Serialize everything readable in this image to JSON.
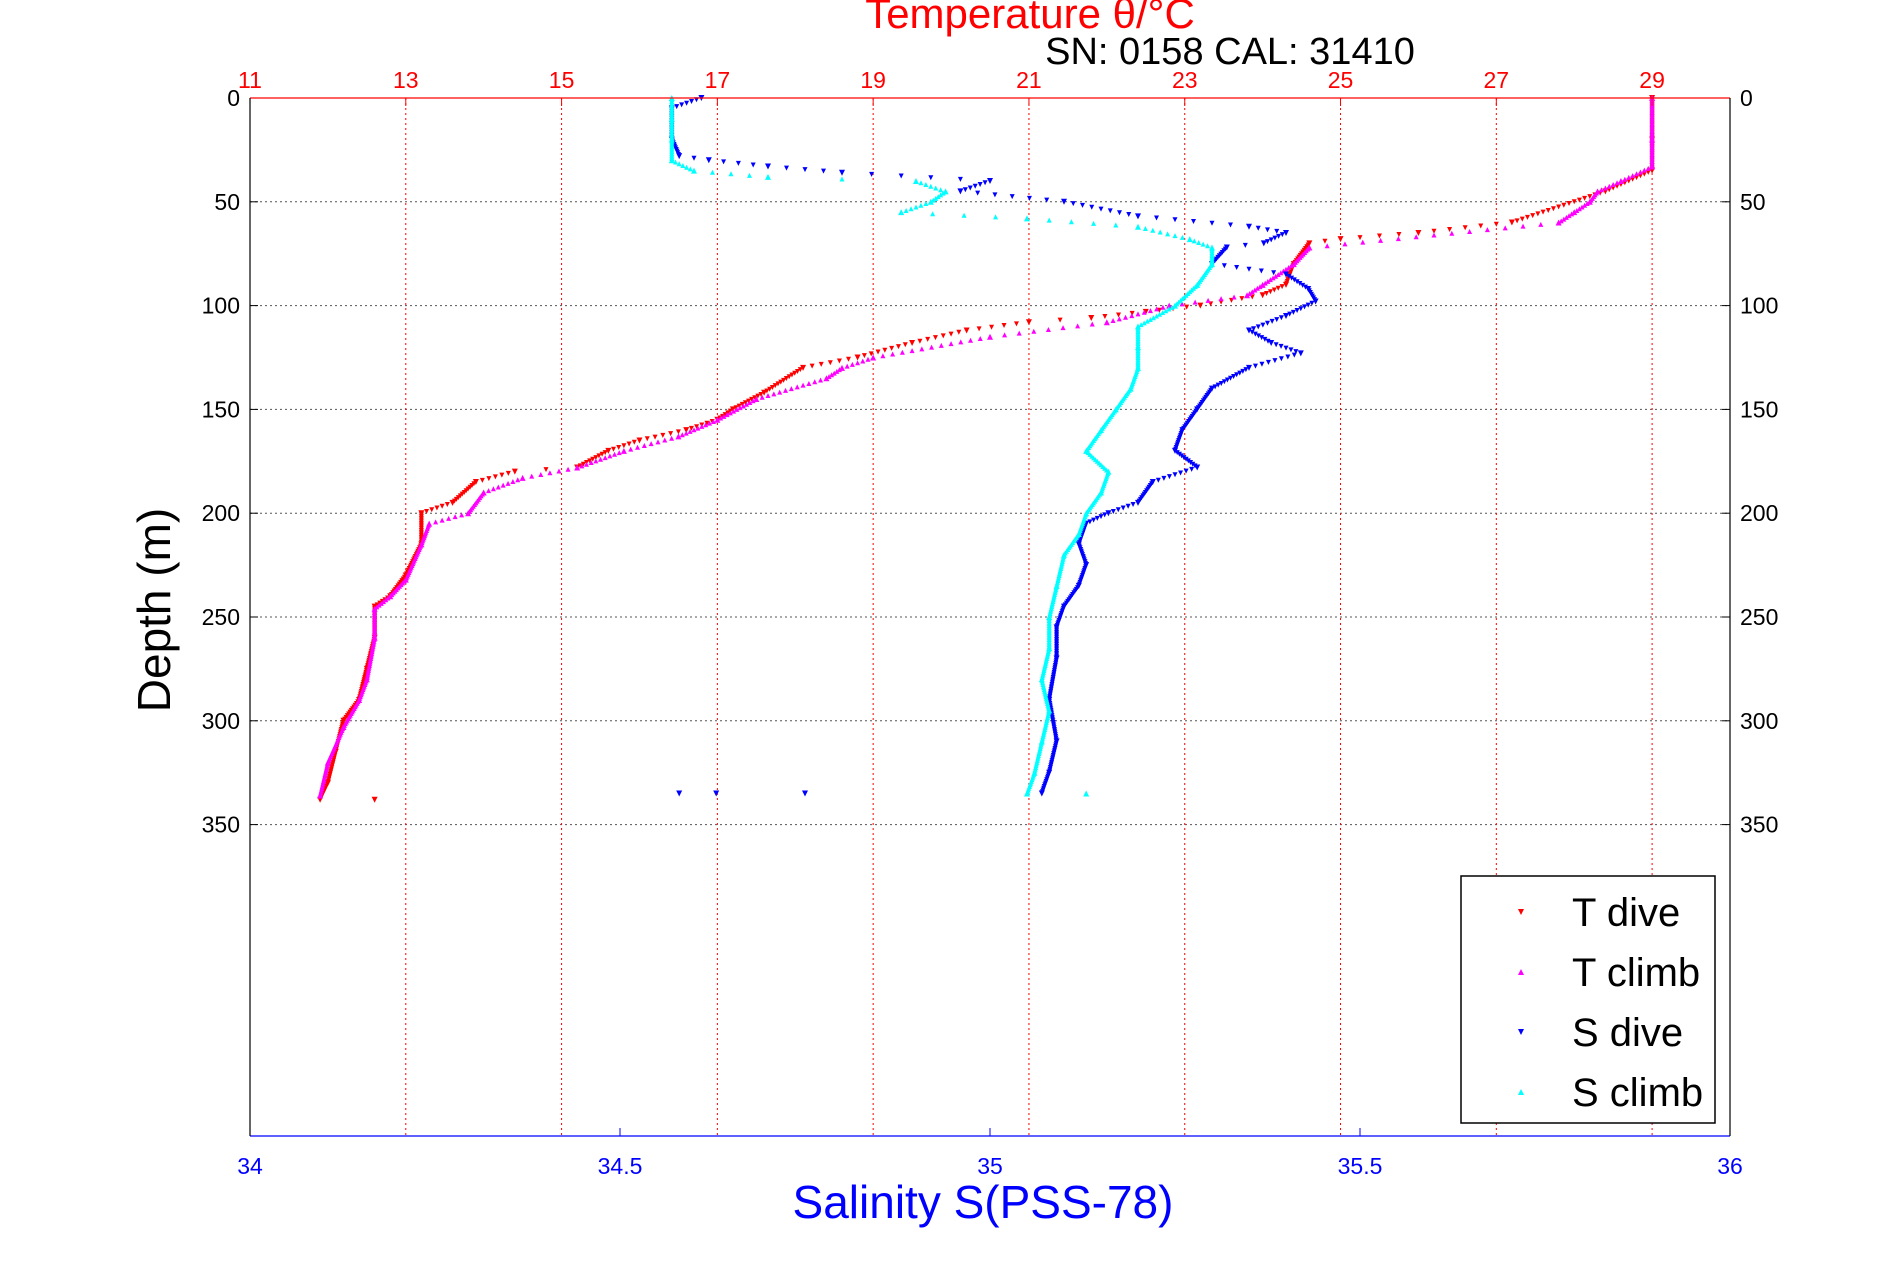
{
  "chart_data": {
    "type": "scatter",
    "title": "Temperature θ/°C",
    "subtitle": "SN: 0158  CAL: 31410",
    "xlabel": "Salinity S(PSS-78)",
    "ylabel": "Depth (m)",
    "salinity_axis": {
      "range": [
        34,
        36
      ],
      "ticks": [
        "34",
        "34.5",
        "35",
        "35.5",
        "36"
      ]
    },
    "temperature_axis": {
      "range": [
        11,
        30
      ],
      "ticks": [
        "11",
        "13",
        "15",
        "17",
        "19",
        "21",
        "23",
        "25",
        "27",
        "29"
      ]
    },
    "depth_axis": {
      "range": [
        0,
        500
      ],
      "reversed": true,
      "ticks": [
        "0",
        "50",
        "100",
        "150",
        "200",
        "250",
        "300",
        "350"
      ]
    },
    "grid": true,
    "legend_position": "bottom-right",
    "series": [
      {
        "name": "T dive",
        "color": "#ff0000",
        "marker": "triangle-down",
        "axis": "temperature",
        "points": [
          [
            29,
            0
          ],
          [
            29,
            20
          ],
          [
            29,
            35
          ],
          [
            28.4,
            45
          ],
          [
            27.2,
            60
          ],
          [
            26,
            65
          ],
          [
            25,
            68
          ],
          [
            24.6,
            70
          ],
          [
            24.4,
            80
          ],
          [
            24.3,
            90
          ],
          [
            24.0,
            95
          ],
          [
            23.2,
            100
          ],
          [
            22.5,
            103
          ],
          [
            21.8,
            106
          ],
          [
            21,
            108
          ],
          [
            20.2,
            112
          ],
          [
            19.5,
            118
          ],
          [
            18.8,
            125
          ],
          [
            18.1,
            130
          ],
          [
            17.6,
            142
          ],
          [
            17.2,
            150
          ],
          [
            17.0,
            155
          ],
          [
            16.6,
            160
          ],
          [
            16.0,
            165
          ],
          [
            15.6,
            170
          ],
          [
            15.2,
            178
          ],
          [
            14.4,
            180
          ],
          [
            13.9,
            185
          ],
          [
            13.6,
            195
          ],
          [
            13.2,
            200
          ],
          [
            13.2,
            215
          ],
          [
            13.0,
            230
          ],
          [
            12.8,
            240
          ],
          [
            12.6,
            245
          ],
          [
            12.6,
            260
          ],
          [
            12.5,
            275
          ],
          [
            12.4,
            290
          ],
          [
            12.2,
            300
          ],
          [
            12.1,
            315
          ],
          [
            12.0,
            330
          ],
          [
            11.9,
            338
          ],
          [
            12.6,
            338
          ]
        ]
      },
      {
        "name": "T climb",
        "color": "#ff00ff",
        "marker": "triangle-up",
        "axis": "temperature",
        "points": [
          [
            29,
            0
          ],
          [
            29,
            20
          ],
          [
            29,
            33
          ],
          [
            28.6,
            40
          ],
          [
            28.3,
            45
          ],
          [
            28.2,
            50
          ],
          [
            28.0,
            55
          ],
          [
            27.8,
            60
          ],
          [
            24.6,
            72
          ],
          [
            24.4,
            80
          ],
          [
            24.0,
            90
          ],
          [
            23.8,
            95
          ],
          [
            22.8,
            100
          ],
          [
            22.0,
            108
          ],
          [
            20.5,
            115
          ],
          [
            19.0,
            125
          ],
          [
            18.6,
            130
          ],
          [
            18.4,
            135
          ],
          [
            17.5,
            145
          ],
          [
            17.0,
            155
          ],
          [
            16.5,
            163
          ],
          [
            15.8,
            170
          ],
          [
            15.2,
            178
          ],
          [
            14.5,
            183
          ],
          [
            14.0,
            190
          ],
          [
            13.8,
            200
          ],
          [
            13.3,
            205
          ],
          [
            13.2,
            215
          ],
          [
            13.0,
            232
          ],
          [
            12.8,
            240
          ],
          [
            12.6,
            246
          ],
          [
            12.6,
            260
          ],
          [
            12.5,
            280
          ],
          [
            12.4,
            290
          ],
          [
            12.2,
            303
          ],
          [
            12.0,
            320
          ],
          [
            11.9,
            336
          ]
        ]
      },
      {
        "name": "S dive",
        "color": "#0000ff",
        "marker": "triangle-down",
        "axis": "salinity",
        "points": [
          [
            34.61,
            0
          ],
          [
            34.57,
            5
          ],
          [
            34.57,
            20
          ],
          [
            34.58,
            28
          ],
          [
            34.62,
            30
          ],
          [
            34.7,
            33
          ],
          [
            34.8,
            36
          ],
          [
            35.0,
            40
          ],
          [
            34.96,
            45
          ],
          [
            35.1,
            50
          ],
          [
            35.2,
            57
          ],
          [
            35.35,
            62
          ],
          [
            35.4,
            65
          ],
          [
            35.37,
            70
          ],
          [
            35.32,
            72
          ],
          [
            35.3,
            80
          ],
          [
            35.4,
            85
          ],
          [
            35.43,
            92
          ],
          [
            35.44,
            98
          ],
          [
            35.4,
            105
          ],
          [
            35.35,
            112
          ],
          [
            35.38,
            118
          ],
          [
            35.42,
            123
          ],
          [
            35.35,
            130
          ],
          [
            35.3,
            140
          ],
          [
            35.28,
            150
          ],
          [
            35.26,
            160
          ],
          [
            35.25,
            170
          ],
          [
            35.28,
            178
          ],
          [
            35.22,
            185
          ],
          [
            35.2,
            195
          ],
          [
            35.16,
            200
          ],
          [
            35.13,
            205
          ],
          [
            35.12,
            215
          ],
          [
            35.13,
            225
          ],
          [
            35.12,
            235
          ],
          [
            35.1,
            245
          ],
          [
            35.09,
            255
          ],
          [
            35.09,
            270
          ],
          [
            35.08,
            290
          ],
          [
            35.09,
            310
          ],
          [
            35.08,
            325
          ],
          [
            35.07,
            335
          ],
          [
            34.58,
            335
          ],
          [
            34.63,
            335
          ],
          [
            34.75,
            335
          ]
        ]
      },
      {
        "name": "S climb",
        "color": "#00ffff",
        "marker": "triangle-up",
        "axis": "salinity",
        "points": [
          [
            34.57,
            0
          ],
          [
            34.57,
            10
          ],
          [
            34.57,
            20
          ],
          [
            34.57,
            30
          ],
          [
            34.6,
            35
          ],
          [
            34.7,
            38
          ],
          [
            34.9,
            40
          ],
          [
            34.94,
            45
          ],
          [
            34.92,
            50
          ],
          [
            34.88,
            55
          ],
          [
            35.05,
            58
          ],
          [
            35.2,
            62
          ],
          [
            35.27,
            68
          ],
          [
            35.3,
            72
          ],
          [
            35.3,
            80
          ],
          [
            35.28,
            90
          ],
          [
            35.25,
            100
          ],
          [
            35.2,
            110
          ],
          [
            35.2,
            120
          ],
          [
            35.2,
            130
          ],
          [
            35.19,
            140
          ],
          [
            35.17,
            150
          ],
          [
            35.15,
            160
          ],
          [
            35.13,
            170
          ],
          [
            35.16,
            180
          ],
          [
            35.15,
            190
          ],
          [
            35.13,
            200
          ],
          [
            35.12,
            210
          ],
          [
            35.1,
            220
          ],
          [
            35.09,
            235
          ],
          [
            35.08,
            250
          ],
          [
            35.08,
            265
          ],
          [
            35.07,
            280
          ],
          [
            35.08,
            295
          ],
          [
            35.07,
            310
          ],
          [
            35.06,
            325
          ],
          [
            35.05,
            335
          ],
          [
            35.13,
            335
          ]
        ]
      }
    ]
  }
}
